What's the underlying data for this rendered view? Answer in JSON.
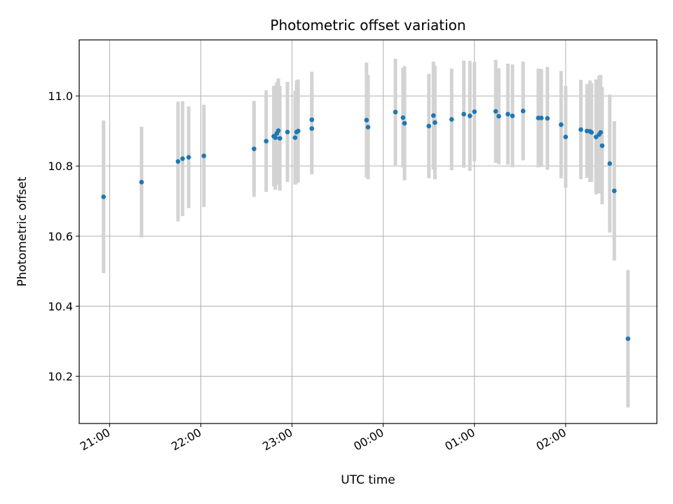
{
  "chart_data": {
    "type": "scatter",
    "title": "Photometric offset variation",
    "xlabel": "UTC time",
    "ylabel": "Photometric offset",
    "x_axis_type": "time",
    "xlim": [
      "20:40",
      "27:00"
    ],
    "ylim": [
      10.065,
      11.16
    ],
    "yticks": [
      10.2,
      10.4,
      10.6,
      10.8,
      11.0
    ],
    "ytick_labels": [
      "10.2",
      "10.4",
      "10.6",
      "10.8",
      "11.0"
    ],
    "xticks": [
      "21:00",
      "22:00",
      "23:00",
      "24:00",
      "25:00",
      "26:00"
    ],
    "xtick_labels": [
      "21:00",
      "22:00",
      "23:00",
      "00:00",
      "01:00",
      "02:00"
    ],
    "grid": true,
    "point_color": "#1f77b4",
    "errorbar_color": "#d3d3d3",
    "series": [
      {
        "x": [
          "20:56",
          "21:21",
          "21:45",
          "21:48",
          "21:52",
          "22:02",
          "22:35",
          "22:43",
          "22:48",
          "22:49",
          "22:50",
          "22:51",
          "22:52",
          "22:57",
          "23:02",
          "23:03",
          "23:04",
          "23:13",
          "23:13",
          "23:49",
          "23:50",
          "24:08",
          "24:13",
          "24:14",
          "24:30",
          "24:33",
          "24:34",
          "24:45",
          "24:53",
          "24:57",
          "25:00",
          "25:14",
          "25:16",
          "25:22",
          "25:25",
          "25:32",
          "25:42",
          "25:44",
          "25:48",
          "25:57",
          "26:00",
          "26:10",
          "26:14",
          "26:16",
          "26:17",
          "26:20",
          "26:22",
          "26:23",
          "26:24",
          "26:29",
          "26:32",
          "26:41"
        ],
        "y": [
          10.712,
          10.754,
          10.813,
          10.821,
          10.825,
          10.829,
          10.849,
          10.871,
          10.885,
          10.881,
          10.893,
          10.901,
          10.879,
          10.897,
          10.881,
          10.897,
          10.9,
          10.932,
          10.907,
          10.931,
          10.911,
          10.954,
          10.938,
          10.922,
          10.914,
          10.944,
          10.924,
          10.933,
          10.948,
          10.943,
          10.955,
          10.956,
          10.942,
          10.948,
          10.943,
          10.957,
          10.937,
          10.937,
          10.936,
          10.918,
          10.883,
          10.904,
          10.9,
          10.899,
          10.896,
          10.883,
          10.89,
          10.896,
          10.858,
          10.807,
          10.729,
          10.307
        ],
        "yerr": [
          0.218,
          0.158,
          0.171,
          0.164,
          0.145,
          0.146,
          0.137,
          0.145,
          0.143,
          0.149,
          0.146,
          0.149,
          0.149,
          0.143,
          0.134,
          0.147,
          0.147,
          0.137,
          0.131,
          0.164,
          0.149,
          0.152,
          0.142,
          0.163,
          0.149,
          0.154,
          0.162,
          0.145,
          0.153,
          0.157,
          0.142,
          0.147,
          0.137,
          0.144,
          0.147,
          0.141,
          0.141,
          0.14,
          0.147,
          0.153,
          0.145,
          0.142,
          0.134,
          0.145,
          0.141,
          0.164,
          0.168,
          0.164,
          0.167,
          0.197,
          0.199,
          0.196
        ]
      }
    ]
  }
}
